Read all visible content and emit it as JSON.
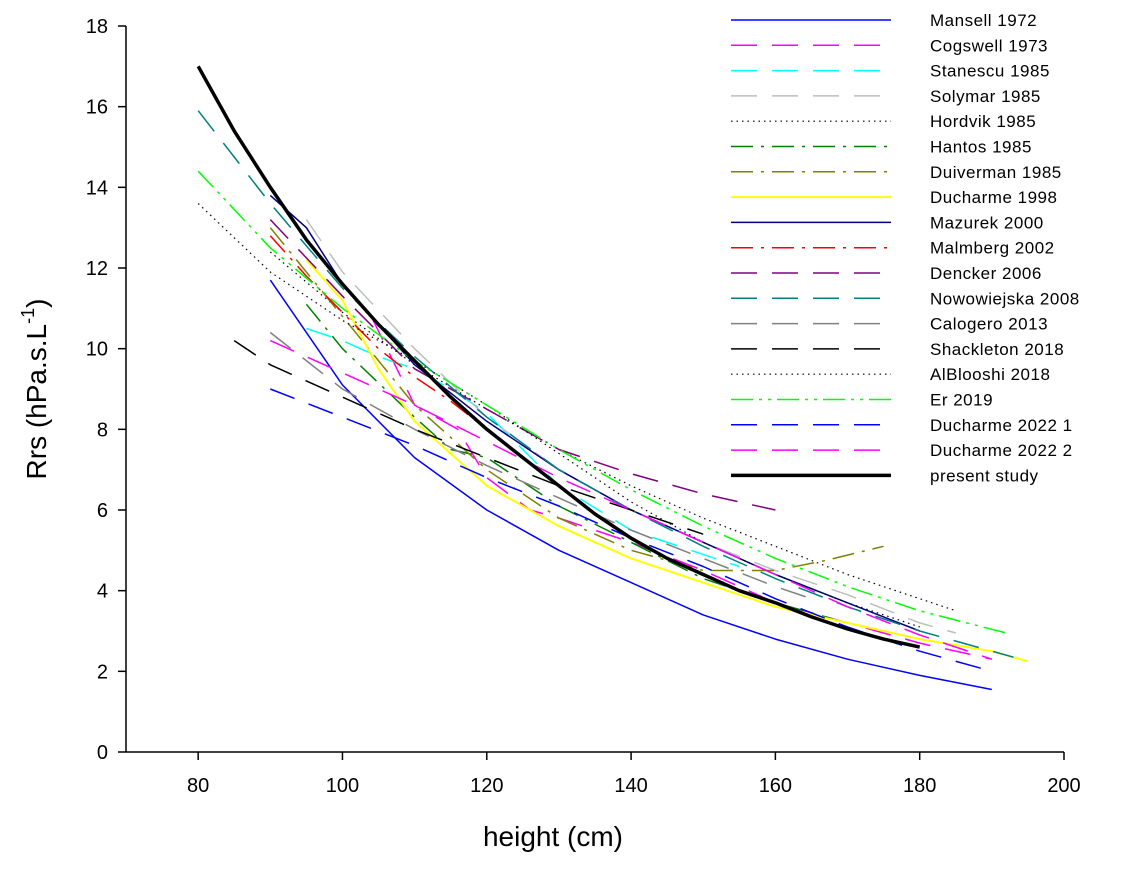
{
  "chart_data": {
    "type": "line",
    "title": "",
    "xlabel": "height (cm)",
    "ylabel": "Rrs (hPa.s.L",
    "ylabel_superscript": "-1",
    "ylabel_close": ")",
    "xlim": [
      70,
      200
    ],
    "ylim": [
      0,
      18
    ],
    "xticks": [
      80,
      100,
      120,
      140,
      160,
      180,
      200
    ],
    "yticks": [
      0,
      2,
      4,
      6,
      8,
      10,
      12,
      14,
      16,
      18
    ],
    "grid": false,
    "legend_position": "top-right",
    "series": [
      {
        "name": "Mansell 1972",
        "color": "#0000ff",
        "dash": "solid",
        "width": 1.5,
        "points": [
          [
            90,
            11.7
          ],
          [
            100,
            9.1
          ],
          [
            110,
            7.3
          ],
          [
            120,
            6.0
          ],
          [
            130,
            5.0
          ],
          [
            140,
            4.2
          ],
          [
            150,
            3.4
          ],
          [
            160,
            2.8
          ],
          [
            170,
            2.3
          ],
          [
            180,
            1.9
          ],
          [
            190,
            1.55
          ]
        ]
      },
      {
        "name": "Cogswell 1973",
        "color": "#ff00ff",
        "dash": "longdash",
        "width": 1.5,
        "points": [
          [
            104,
            10.8
          ],
          [
            110,
            8.6
          ],
          [
            116,
            8.0
          ],
          [
            120,
            6.8
          ],
          [
            126,
            6.0
          ],
          [
            130,
            5.8
          ],
          [
            140,
            5.2
          ],
          [
            150,
            4.5
          ],
          [
            160,
            3.7
          ],
          [
            170,
            3.2
          ],
          [
            180,
            2.7
          ],
          [
            190,
            2.3
          ]
        ]
      },
      {
        "name": "Stanescu 1985",
        "color": "#00ffff",
        "dash": "longdash",
        "width": 1.5,
        "points": [
          [
            95,
            10.5
          ],
          [
            100,
            10.2
          ],
          [
            105,
            9.8
          ],
          [
            110,
            9.5
          ],
          [
            115,
            9.0
          ],
          [
            120,
            8.4
          ],
          [
            125,
            7.5
          ],
          [
            130,
            6.6
          ],
          [
            140,
            5.5
          ],
          [
            150,
            4.9
          ],
          [
            155,
            4.6
          ]
        ]
      },
      {
        "name": "Solymar 1985",
        "color": "#bebebe",
        "dash": "longdash",
        "width": 1.5,
        "points": [
          [
            95,
            13.2
          ],
          [
            100,
            11.9
          ],
          [
            110,
            10.0
          ],
          [
            120,
            8.3
          ],
          [
            130,
            7.0
          ],
          [
            140,
            6.0
          ],
          [
            150,
            5.2
          ],
          [
            160,
            4.5
          ],
          [
            170,
            3.9
          ],
          [
            180,
            3.2
          ],
          [
            185,
            2.95
          ]
        ]
      },
      {
        "name": "Hordvik 1985",
        "color": "#000000",
        "dash": "dotted",
        "width": 1.2,
        "points": [
          [
            90,
            12.4
          ],
          [
            100,
            10.9
          ],
          [
            110,
            9.6
          ],
          [
            120,
            8.5
          ],
          [
            130,
            7.5
          ],
          [
            140,
            6.6
          ],
          [
            150,
            5.8
          ],
          [
            160,
            5.1
          ],
          [
            170,
            4.4
          ],
          [
            180,
            3.8
          ],
          [
            185,
            3.5
          ]
        ]
      },
      {
        "name": "Hantos 1985",
        "color": "#008000",
        "dash": "dashdot",
        "width": 1.5,
        "points": [
          [
            95,
            11.1
          ],
          [
            100,
            10.0
          ],
          [
            110,
            8.3
          ],
          [
            115,
            7.5
          ],
          [
            120,
            7.3
          ],
          [
            130,
            6.1
          ],
          [
            140,
            5.2
          ],
          [
            150,
            4.3
          ],
          [
            160,
            3.7
          ],
          [
            168,
            3.3
          ]
        ]
      },
      {
        "name": "Duiverman 1985",
        "color": "#808000",
        "dash": "dashdot",
        "width": 1.5,
        "points": [
          [
            90,
            13.0
          ],
          [
            100,
            10.8
          ],
          [
            110,
            8.6
          ],
          [
            120,
            7.0
          ],
          [
            130,
            5.8
          ],
          [
            140,
            5.0
          ],
          [
            150,
            4.5
          ],
          [
            160,
            4.5
          ],
          [
            167,
            4.75
          ],
          [
            175,
            5.1
          ]
        ]
      },
      {
        "name": "Ducharme 1998",
        "color": "#ffff00",
        "dash": "solid",
        "width": 2,
        "points": [
          [
            95,
            12.2
          ],
          [
            100,
            11.2
          ],
          [
            105,
            9.5
          ],
          [
            110,
            8.2
          ],
          [
            120,
            6.6
          ],
          [
            130,
            5.6
          ],
          [
            140,
            4.8
          ],
          [
            150,
            4.2
          ],
          [
            160,
            3.6
          ],
          [
            170,
            3.2
          ],
          [
            180,
            2.8
          ],
          [
            190,
            2.5
          ],
          [
            195,
            2.25
          ]
        ]
      },
      {
        "name": "Mazurek 2000",
        "color": "#000080",
        "dash": "solid",
        "width": 1.5,
        "points": [
          [
            90,
            13.8
          ],
          [
            95,
            13.0
          ],
          [
            100,
            11.6
          ],
          [
            110,
            9.6
          ],
          [
            120,
            8.2
          ],
          [
            130,
            7.0
          ],
          [
            140,
            6.0
          ],
          [
            150,
            5.2
          ],
          [
            160,
            4.4
          ],
          [
            170,
            3.7
          ],
          [
            180,
            3.0
          ]
        ]
      },
      {
        "name": "Malmberg 2002",
        "color": "#ff0000",
        "dash": "dashdot",
        "width": 1.5,
        "points": [
          [
            90,
            12.8
          ],
          [
            95,
            11.8
          ],
          [
            100,
            10.9
          ],
          [
            105,
            10.0
          ],
          [
            110,
            9.3
          ],
          [
            115,
            8.7
          ],
          [
            120,
            8.0
          ],
          [
            125,
            7.3
          ]
        ]
      },
      {
        "name": "Dencker 2006",
        "color": "#800080",
        "dash": "longdash",
        "width": 1.5,
        "points": [
          [
            90,
            13.2
          ],
          [
            100,
            11.3
          ],
          [
            110,
            9.5
          ],
          [
            120,
            8.5
          ],
          [
            130,
            7.5
          ],
          [
            140,
            6.9
          ],
          [
            150,
            6.4
          ],
          [
            160,
            6.0
          ]
        ]
      },
      {
        "name": "Nowowiejska 2008",
        "color": "#008080",
        "dash": "longdash",
        "width": 1.5,
        "points": [
          [
            80,
            15.9
          ],
          [
            90,
            13.6
          ],
          [
            100,
            11.5
          ],
          [
            110,
            9.8
          ],
          [
            120,
            8.3
          ],
          [
            130,
            7.0
          ],
          [
            140,
            6.0
          ],
          [
            150,
            5.1
          ],
          [
            160,
            4.3
          ],
          [
            170,
            3.6
          ],
          [
            180,
            3.0
          ],
          [
            193,
            2.35
          ]
        ]
      },
      {
        "name": "Calogero 2013",
        "color": "#808080",
        "dash": "longdash",
        "width": 1.5,
        "points": [
          [
            90,
            10.4
          ],
          [
            100,
            9.0
          ],
          [
            110,
            8.0
          ],
          [
            120,
            7.1
          ],
          [
            130,
            6.3
          ],
          [
            140,
            5.5
          ],
          [
            150,
            4.8
          ],
          [
            160,
            4.1
          ],
          [
            165,
            3.8
          ]
        ]
      },
      {
        "name": "Shackleton 2018",
        "color": "#000000",
        "dash": "longdash",
        "width": 1.5,
        "points": [
          [
            85,
            10.2
          ],
          [
            90,
            9.6
          ],
          [
            100,
            8.8
          ],
          [
            110,
            8.0
          ],
          [
            120,
            7.3
          ],
          [
            130,
            6.6
          ],
          [
            140,
            6.0
          ],
          [
            150,
            5.4
          ]
        ]
      },
      {
        "name": "AlBlooshi 2018",
        "color": "#000000",
        "dash": "dotted",
        "width": 1.2,
        "points": [
          [
            80,
            13.6
          ],
          [
            90,
            11.9
          ],
          [
            100,
            10.7
          ],
          [
            110,
            9.7
          ],
          [
            120,
            8.6
          ],
          [
            130,
            7.4
          ],
          [
            140,
            6.2
          ],
          [
            150,
            5.2
          ],
          [
            160,
            4.4
          ],
          [
            170,
            3.7
          ],
          [
            180,
            3.1
          ]
        ]
      },
      {
        "name": "Er 2019",
        "color": "#00ff00",
        "dash": "dashdotdot",
        "width": 1.5,
        "points": [
          [
            80,
            14.4
          ],
          [
            90,
            12.5
          ],
          [
            100,
            11.0
          ],
          [
            110,
            9.7
          ],
          [
            120,
            8.6
          ],
          [
            130,
            7.5
          ],
          [
            140,
            6.5
          ],
          [
            150,
            5.6
          ],
          [
            160,
            4.8
          ],
          [
            170,
            4.1
          ],
          [
            180,
            3.5
          ],
          [
            192,
            2.95
          ]
        ]
      },
      {
        "name": "Ducharme 2022 1",
        "color": "#0000ff",
        "dash": "longdash",
        "width": 1.5,
        "points": [
          [
            90,
            9.0
          ],
          [
            100,
            8.3
          ],
          [
            110,
            7.6
          ],
          [
            120,
            6.8
          ],
          [
            130,
            6.1
          ],
          [
            140,
            5.3
          ],
          [
            150,
            4.6
          ],
          [
            160,
            3.8
          ],
          [
            170,
            3.1
          ],
          [
            180,
            2.5
          ],
          [
            190,
            2.0
          ]
        ]
      },
      {
        "name": "Ducharme 2022 2",
        "color": "#ff00ff",
        "dash": "longdash",
        "width": 1.5,
        "points": [
          [
            90,
            10.2
          ],
          [
            100,
            9.4
          ],
          [
            110,
            8.6
          ],
          [
            120,
            7.7
          ],
          [
            130,
            6.8
          ],
          [
            140,
            6.0
          ],
          [
            150,
            5.2
          ],
          [
            160,
            4.4
          ],
          [
            170,
            3.6
          ],
          [
            180,
            2.9
          ],
          [
            190,
            2.3
          ]
        ]
      },
      {
        "name": "present study",
        "color": "#000000",
        "dash": "solid",
        "width": 3.5,
        "points": [
          [
            80,
            17.0
          ],
          [
            85,
            15.4
          ],
          [
            90,
            14.0
          ],
          [
            95,
            12.7
          ],
          [
            100,
            11.6
          ],
          [
            105,
            10.6
          ],
          [
            110,
            9.7
          ],
          [
            115,
            8.8
          ],
          [
            120,
            8.0
          ],
          [
            125,
            7.3
          ],
          [
            130,
            6.6
          ],
          [
            135,
            5.9
          ],
          [
            140,
            5.3
          ],
          [
            145,
            4.8
          ],
          [
            150,
            4.4
          ],
          [
            155,
            4.0
          ],
          [
            160,
            3.7
          ],
          [
            165,
            3.35
          ],
          [
            170,
            3.05
          ],
          [
            175,
            2.8
          ],
          [
            180,
            2.6
          ]
        ]
      }
    ]
  }
}
